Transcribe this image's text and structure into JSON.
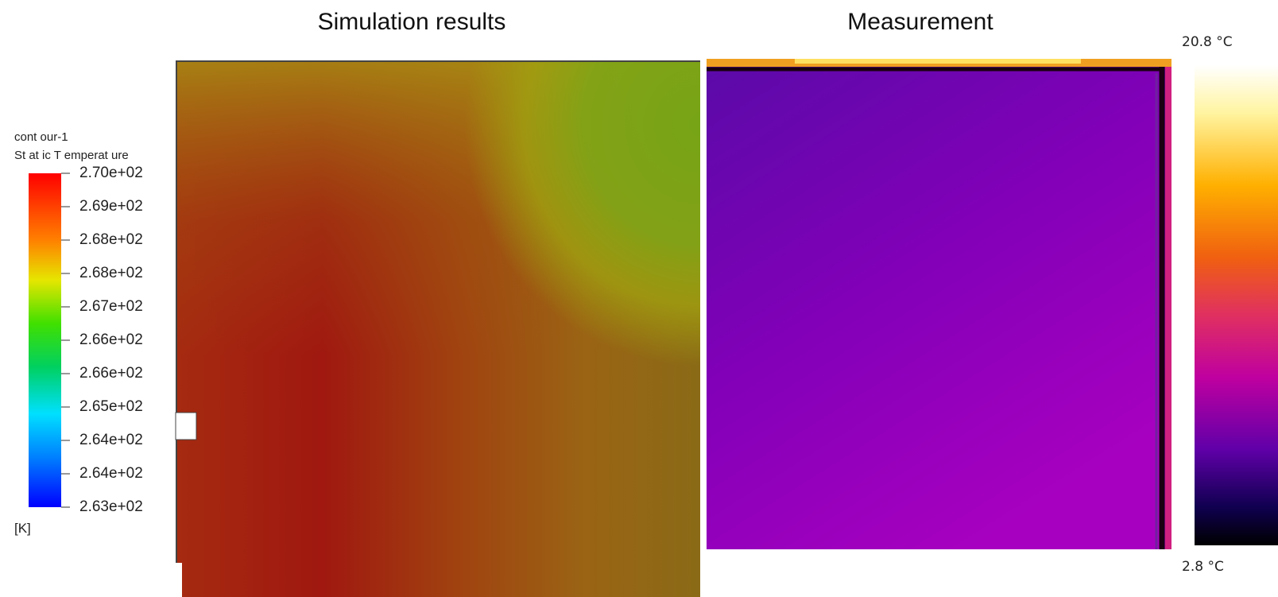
{
  "titles": {
    "left": "Simulation results",
    "right": "Measurement"
  },
  "legend": {
    "name": "cont our-1",
    "variable": "St at ic T emperat ure",
    "labels": [
      "2.70e+02",
      "2.69e+02",
      "2.68e+02",
      "2.68e+02",
      "2.67e+02",
      "2.66e+02",
      "2.66e+02",
      "2.65e+02",
      "2.64e+02",
      "2.64e+02",
      "2.63e+02"
    ],
    "unit": "[K]"
  },
  "thermal_scale": {
    "max": "20.8 °C",
    "min": "2.8 °C"
  }
}
